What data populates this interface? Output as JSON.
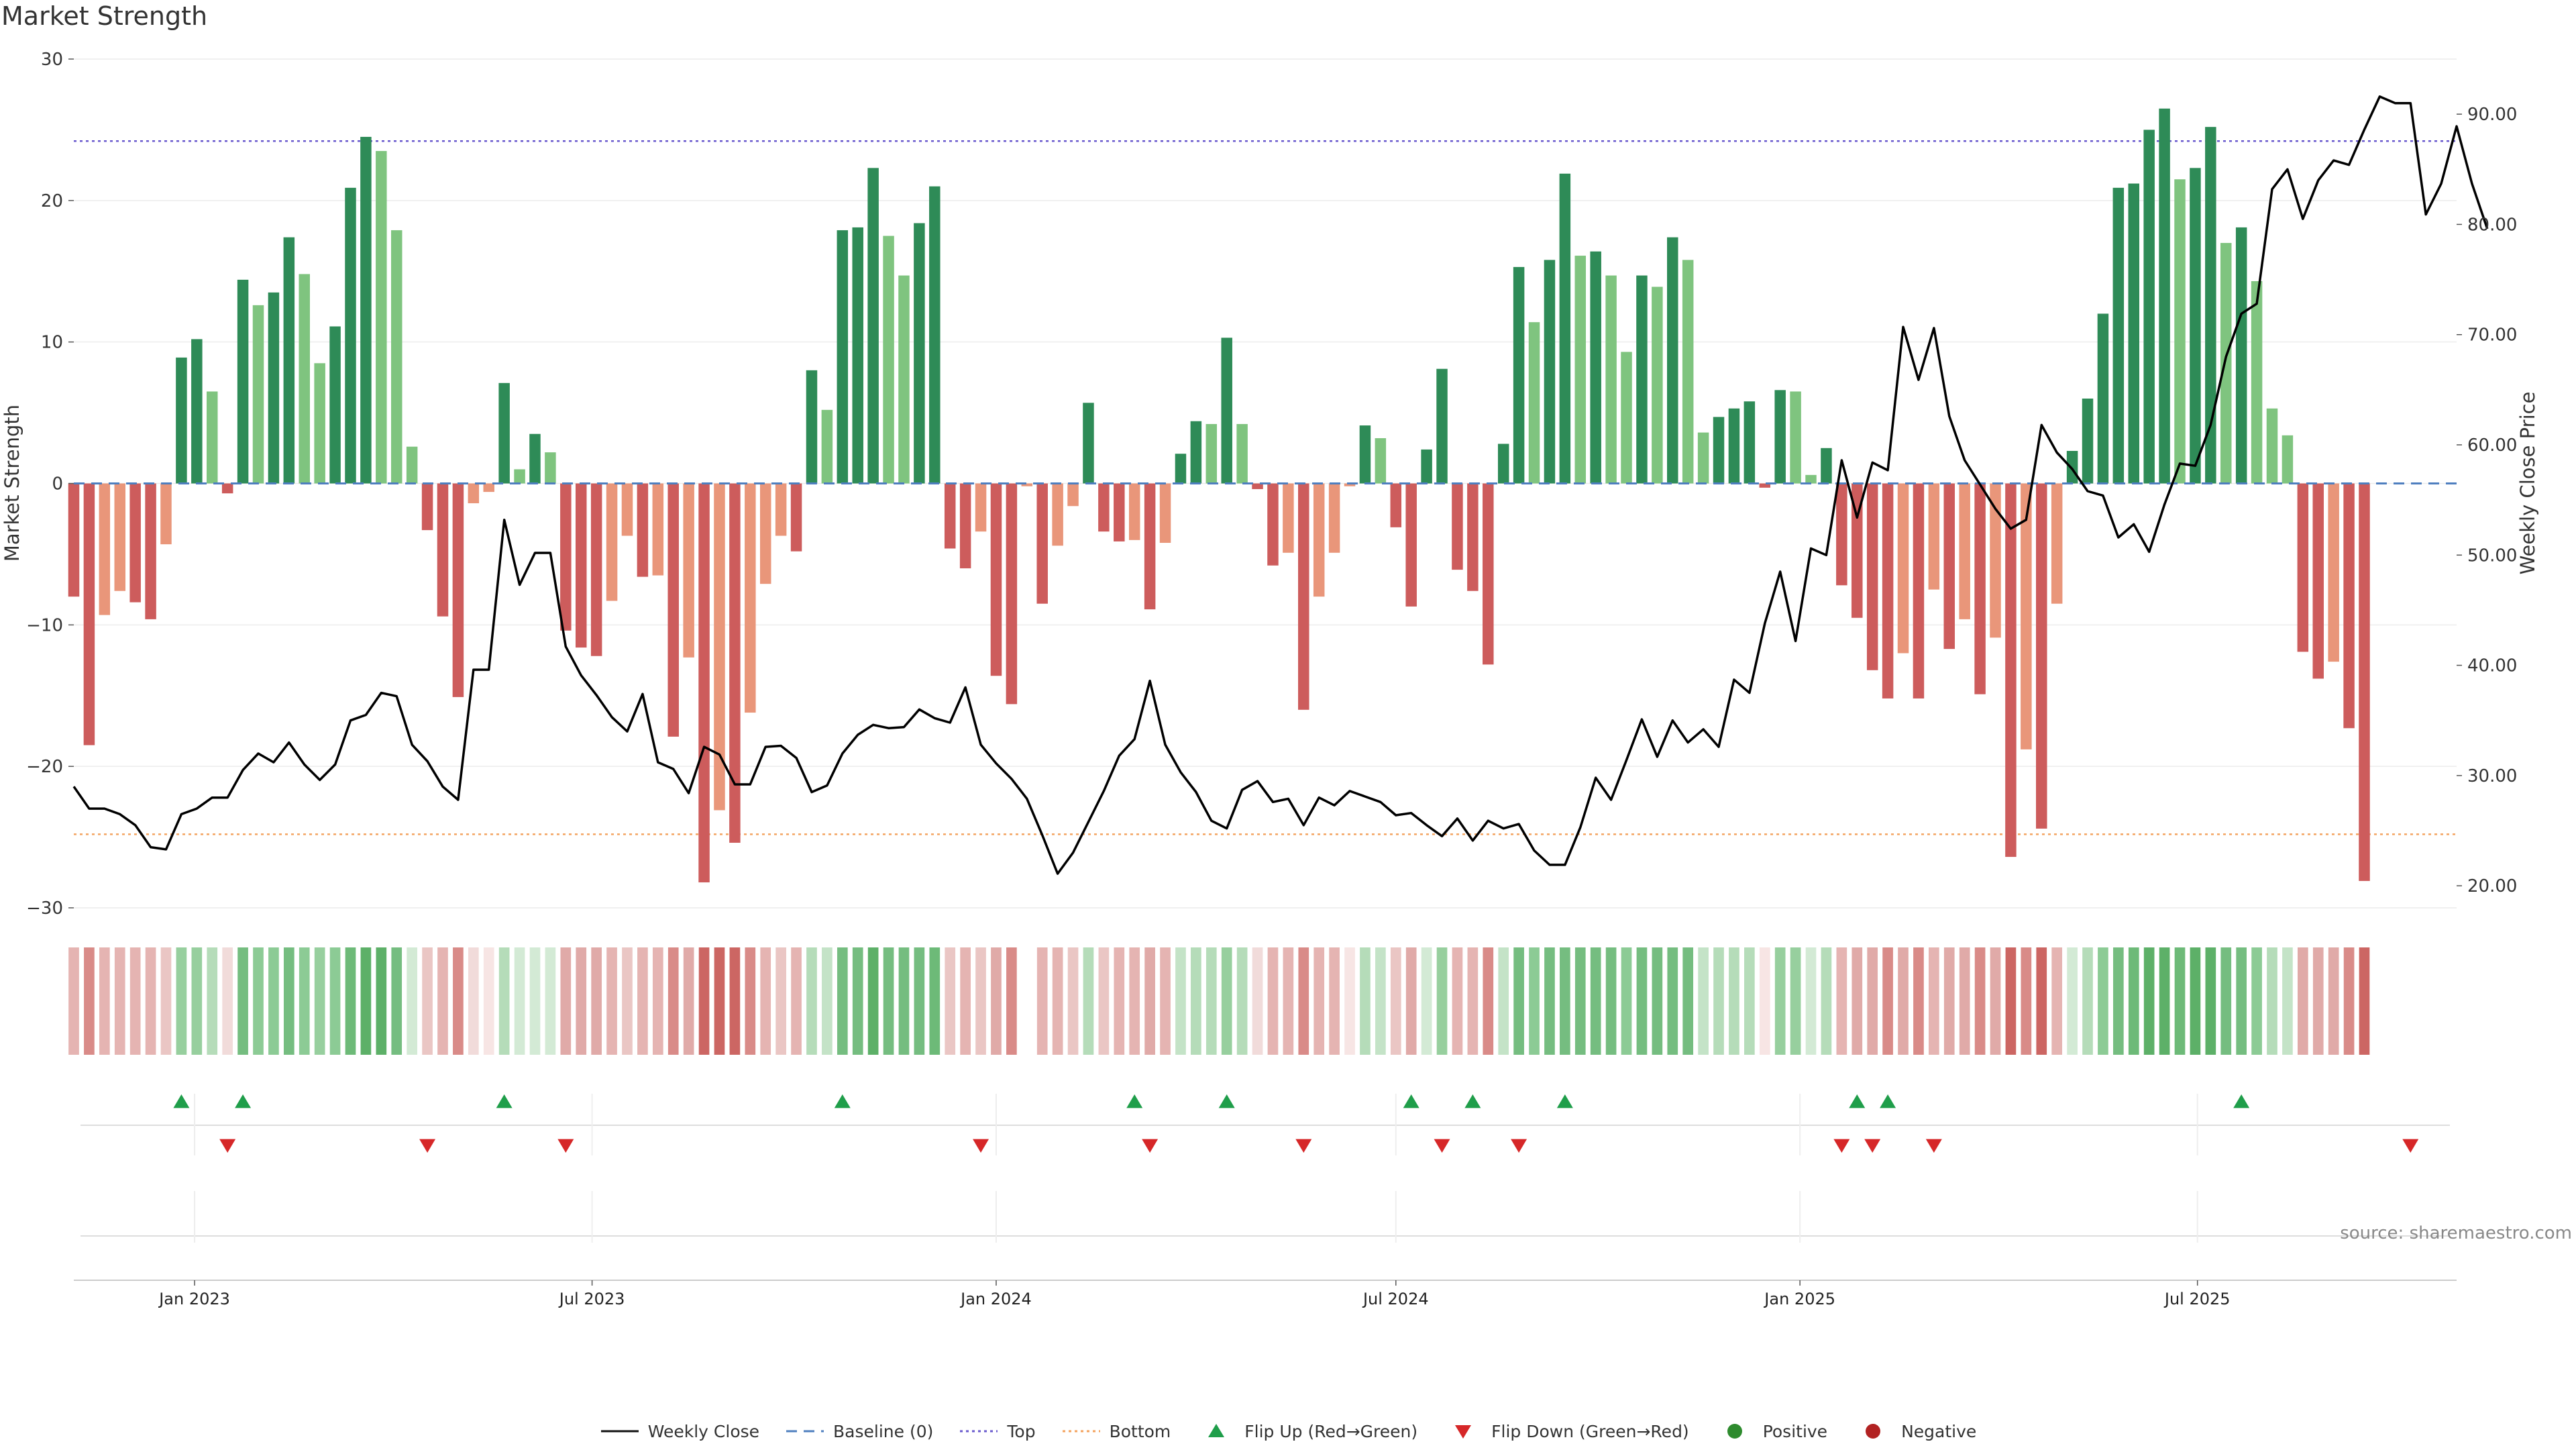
{
  "chart_data": {
    "type": "bar",
    "title": "Market Strength",
    "ylabel": "Market Strength",
    "y2label": "Weekly Close Price",
    "ylim": [
      -30,
      30
    ],
    "y2lim": [
      18,
      95
    ],
    "yticks": [
      "30",
      "20",
      "10",
      "0",
      "−10",
      "−20",
      "−30"
    ],
    "yticks_values": [
      30,
      20,
      10,
      0,
      -10,
      -20,
      -30
    ],
    "y2ticks": [
      "90.00",
      "80.00",
      "70.00",
      "60.00",
      "50.00",
      "40.00",
      "30.00",
      "20.00"
    ],
    "y2ticks_values": [
      90,
      80,
      70,
      60,
      50,
      40,
      30,
      20
    ],
    "top_threshold": 24.2,
    "bottom_threshold": -24.8,
    "x_range": [
      "2022-11-07",
      "2025-10-27"
    ],
    "x_ticks": [
      {
        "date": "2023-01-01",
        "label": "Jan 2023"
      },
      {
        "date": "2023-07-01",
        "label": "Jul 2023"
      },
      {
        "date": "2024-01-01",
        "label": "Jan 2024"
      },
      {
        "date": "2024-07-01",
        "label": "Jul 2024"
      },
      {
        "date": "2025-01-01",
        "label": "Jan 2025"
      },
      {
        "date": "2025-07-01",
        "label": "Jul 2025"
      }
    ],
    "start_date": "2022-11-07",
    "strength": [
      -8,
      -18.5,
      -9.3,
      -7.6,
      -8.4,
      -9.6,
      -4.3,
      8.9,
      10.2,
      6.5,
      -0.7,
      14.4,
      12.6,
      13.5,
      17.4,
      14.8,
      8.5,
      11.1,
      20.9,
      24.5,
      23.5,
      17.9,
      2.6,
      -3.3,
      -9.4,
      -15.1,
      -1.4,
      -0.6,
      7.1,
      1,
      3.5,
      2.2,
      -10.4,
      -11.6,
      -12.2,
      -8.3,
      -3.7,
      -6.6,
      -6.5,
      -17.9,
      -12.3,
      -28.2,
      -23.1,
      -25.4,
      -16.2,
      -7.1,
      -3.7,
      -4.8,
      8,
      5.2,
      17.9,
      18.1,
      22.3,
      17.5,
      14.7,
      18.4,
      21,
      -4.6,
      -6,
      -3.4,
      -13.6,
      -15.6,
      -0.2,
      -8.5,
      -4.4,
      -1.6,
      5.7,
      -3.4,
      -4.1,
      -4,
      -8.9,
      -4.2,
      2.1,
      4.4,
      4.2,
      10.3,
      4.2,
      -0.4,
      -5.8,
      -4.9,
      -16,
      -8,
      -4.9,
      -0.2,
      4.1,
      3.2,
      -3.1,
      -8.7,
      2.4,
      8.1,
      -6.1,
      -7.6,
      -12.8,
      2.8,
      15.3,
      11.4,
      15.8,
      21.9,
      16.1,
      16.4,
      14.7,
      9.3,
      14.7,
      13.9,
      17.4,
      15.8,
      3.6,
      4.7,
      5.3,
      5.8,
      -0.3,
      6.6,
      6.5,
      0.6,
      2.5,
      -7.2,
      -9.5,
      -13.2,
      -15.2,
      -12,
      -15.2,
      -7.5,
      -11.7,
      -9.6,
      -14.9,
      -10.9,
      -26.4,
      -18.8,
      -24.4,
      -8.5,
      2.3,
      6,
      12,
      20.9,
      21.2,
      25,
      26.5,
      21.5,
      22.3,
      25.2,
      17,
      18.1,
      14.3,
      5.3,
      3.4,
      -11.9,
      -13.8,
      -12.6,
      -17.3,
      -28.1
    ],
    "weekly_close": [
      29,
      27,
      27,
      26.5,
      25.5,
      23.5,
      23.3,
      26.5,
      27,
      28,
      28,
      30.5,
      32,
      31.2,
      33,
      31,
      29.6,
      31,
      35,
      35.5,
      37.5,
      37.2,
      32.8,
      31.3,
      29,
      27.8,
      39.6,
      39.6,
      53.2,
      47.3,
      50.2,
      50.2,
      41.7,
      39.1,
      37.3,
      35.3,
      34,
      37.4,
      31.2,
      30.6,
      28.4,
      32.6,
      31.9,
      29.2,
      29.2,
      32.6,
      32.7,
      31.6,
      28.5,
      29.1,
      32,
      33.7,
      34.6,
      34.3,
      34.4,
      36,
      35.2,
      34.8,
      38,
      32.8,
      31.1,
      29.7,
      27.9,
      24.6,
      21.1,
      23,
      25.8,
      28.6,
      31.8,
      33.3,
      38.6,
      32.8,
      30.3,
      28.5,
      25.9,
      25.2,
      28.7,
      29.5,
      27.6,
      27.9,
      25.5,
      28,
      27.3,
      28.6,
      28.1,
      27.6,
      26.4,
      26.6,
      25.5,
      24.5,
      26.1,
      24.1,
      25.9,
      25.2,
      25.6,
      23.2,
      21.9,
      21.9,
      25.3,
      29.8,
      27.8,
      31.4,
      35.1,
      31.7,
      35,
      33,
      34.2,
      32.6,
      38.7,
      37.5,
      43.8,
      48.5,
      42.2,
      50.6,
      50,
      58.6,
      53.4,
      58.4,
      57.7,
      70.7,
      65.9,
      70.6,
      62.6,
      58.6,
      56.4,
      54.2,
      52.4,
      53.2,
      61.8,
      59.3,
      57.8,
      55.8,
      55.4,
      51.6,
      52.8,
      50.3,
      54.6,
      58.3,
      58.1,
      61.8,
      68,
      71.9,
      72.8,
      83.2,
      85,
      80.5,
      84,
      85.8,
      85.4,
      88.6,
      91.6,
      91,
      91,
      80.9,
      83.7,
      88.9,
      83.7,
      79.6
    ],
    "strip_colors": [
      "#e5b4b2",
      "#d98b88",
      "#e5b4b2",
      "#e5b4b2",
      "#e5b4b2",
      "#e5b4b2",
      "#eac6c4",
      "#97cf9e",
      "#97cf9e",
      "#b5dcb9",
      "#f1dbda",
      "#75bd80",
      "#8ccb95",
      "#8ccb95",
      "#75bd80",
      "#8ccb95",
      "#97cf9e",
      "#8ccb95",
      "#6dba78",
      "#5db068",
      "#5db068",
      "#75bd80",
      "#d3ead5",
      "#eac6c4",
      "#e5b4b2",
      "#d98b88",
      "#f1dbda",
      "#f7e5e4",
      "#b5dcb9",
      "#d3ead5",
      "#d3ead5",
      "#d3ead5",
      "#e0aaa8",
      "#e0aaa8",
      "#e0aaa8",
      "#e5b4b2",
      "#eac6c4",
      "#e5b4b2",
      "#e5b4b2",
      "#d98b88",
      "#e0aaa8",
      "#cc6663",
      "#cc6663",
      "#cc6663",
      "#d98b88",
      "#e5b4b2",
      "#eac6c4",
      "#e5b4b2",
      "#b5dcb9",
      "#c4e3c7",
      "#75bd80",
      "#75bd80",
      "#5db068",
      "#75bd80",
      "#75bd80",
      "#75bd80",
      "#6dba78",
      "#eac6c4",
      "#e5b4b2",
      "#eac6c4",
      "#e0aaa8",
      "#d98b88",
      "#ffffff",
      "#e5b4b2",
      "#e5b4b2",
      "#eac6c4",
      "#b5dcb9",
      "#eac6c4",
      "#e5b4b2",
      "#e5b4b2",
      "#e0aaa8",
      "#e5b4b2",
      "#c4e3c7",
      "#b5dcb9",
      "#b5dcb9",
      "#97cf9e",
      "#b5dcb9",
      "#f1dbda",
      "#e5b4b2",
      "#e5b4b2",
      "#d98b88",
      "#e5b4b2",
      "#e5b4b2",
      "#f7e5e4",
      "#b5dcb9",
      "#c4e3c7",
      "#eac6c4",
      "#e0aaa8",
      "#d3ead5",
      "#97cf9e",
      "#e5b4b2",
      "#e5b4b2",
      "#d98b88",
      "#c4e3c7",
      "#75bd80",
      "#8ccb95",
      "#75bd80",
      "#75bd80",
      "#75bd80",
      "#75bd80",
      "#75bd80",
      "#8ccb95",
      "#75bd80",
      "#75bd80",
      "#75bd80",
      "#75bd80",
      "#c4e3c7",
      "#b5dcb9",
      "#b5dcb9",
      "#b5dcb9",
      "#f7e5e4",
      "#97cf9e",
      "#97cf9e",
      "#d3ead5",
      "#b5dcb9",
      "#e5b4b2",
      "#e0aaa8",
      "#e0aaa8",
      "#d98b88",
      "#e0aaa8",
      "#d98b88",
      "#e5b4b2",
      "#e0aaa8",
      "#e0aaa8",
      "#d98b88",
      "#e0aaa8",
      "#cc6663",
      "#d98b88",
      "#cc6663",
      "#e5b4b2",
      "#d3ead5",
      "#b5dcb9",
      "#8ccb95",
      "#75bd80",
      "#6dba78",
      "#5db068",
      "#5db068",
      "#6dba78",
      "#5db068",
      "#5db068",
      "#75bd80",
      "#75bd80",
      "#8ccb95",
      "#b5dcb9",
      "#c4e3c7",
      "#e0aaa8",
      "#e0aaa8",
      "#e0aaa8",
      "#d98b88",
      "#cc6663"
    ],
    "flips_up": [
      7,
      11,
      28,
      50,
      69,
      75,
      87,
      91,
      97,
      116,
      118,
      141
    ],
    "flips_down": [
      10,
      23,
      32,
      59,
      70,
      80,
      89,
      94,
      115,
      117,
      121,
      152
    ],
    "bar_colors": {
      "strong_positive": "#2e8b57",
      "weak_positive": "#7fc47f",
      "strong_negative": "#cd5c5c",
      "weak_negative": "#e9967a"
    },
    "line_colors": {
      "weekly_close": "#000000",
      "baseline": "#4f7fbf",
      "top": "#6a5acd",
      "bottom": "#f4a460",
      "flip_up": "#1f9e4a",
      "flip_down": "#d62728"
    },
    "legend": [
      {
        "label": "Weekly Close",
        "kind": "line",
        "color": "#111111",
        "dash": ""
      },
      {
        "label": "Baseline (0)",
        "kind": "line",
        "color": "#4f7fbf",
        "dash": "16,10"
      },
      {
        "label": "Top",
        "kind": "line",
        "color": "#6a5acd",
        "dash": "4,5"
      },
      {
        "label": "Bottom",
        "kind": "line",
        "color": "#f4a460",
        "dash": "4,5"
      },
      {
        "label": "Flip Up (Red→Green)",
        "kind": "tri-up",
        "color": "#1f9e4a"
      },
      {
        "label": "Flip Down (Green→Red)",
        "kind": "tri-down",
        "color": "#d62728"
      },
      {
        "label": "Positive",
        "kind": "dot",
        "color": "#2e8b2e"
      },
      {
        "label": "Negative",
        "kind": "dot",
        "color": "#b22222"
      }
    ]
  },
  "source": "source: sharemaestro.com"
}
